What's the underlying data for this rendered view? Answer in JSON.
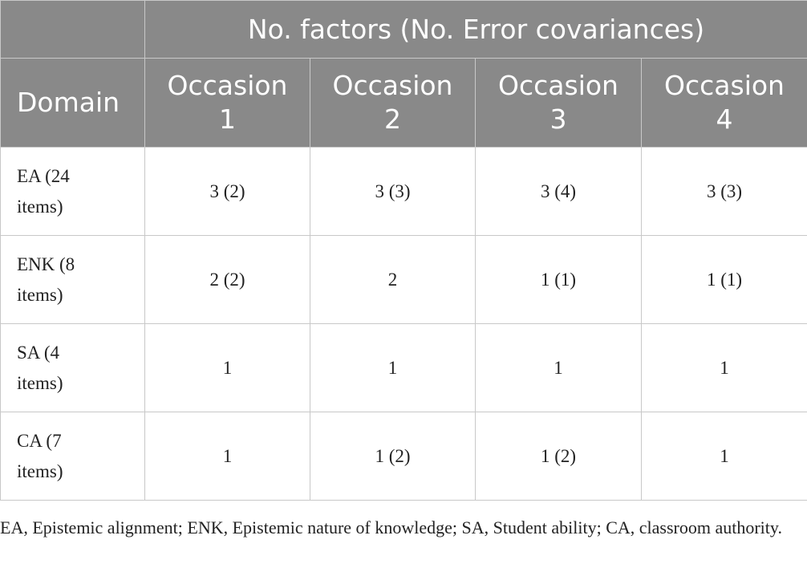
{
  "table": {
    "group_header": "No. factors (No. Error covariances)",
    "columns": [
      "Domain",
      "Occasion 1",
      "Occasion 2",
      "Occasion 3",
      "Occasion 4"
    ],
    "rows": [
      [
        "EA (24 items)",
        "3 (2)",
        "3 (3)",
        "3 (4)",
        "3 (3)"
      ],
      [
        "ENK (8 items)",
        "2 (2)",
        "2",
        "1 (1)",
        "1 (1)"
      ],
      [
        "SA (4 items)",
        "1",
        "1",
        "1",
        "1"
      ],
      [
        "CA (7 items)",
        "1",
        "1 (2)",
        "1 (2)",
        "1"
      ]
    ],
    "footnote": "EA, Epistemic alignment; ENK, Epistemic nature of knowledge; SA, Student ability; CA, classroom authority."
  }
}
